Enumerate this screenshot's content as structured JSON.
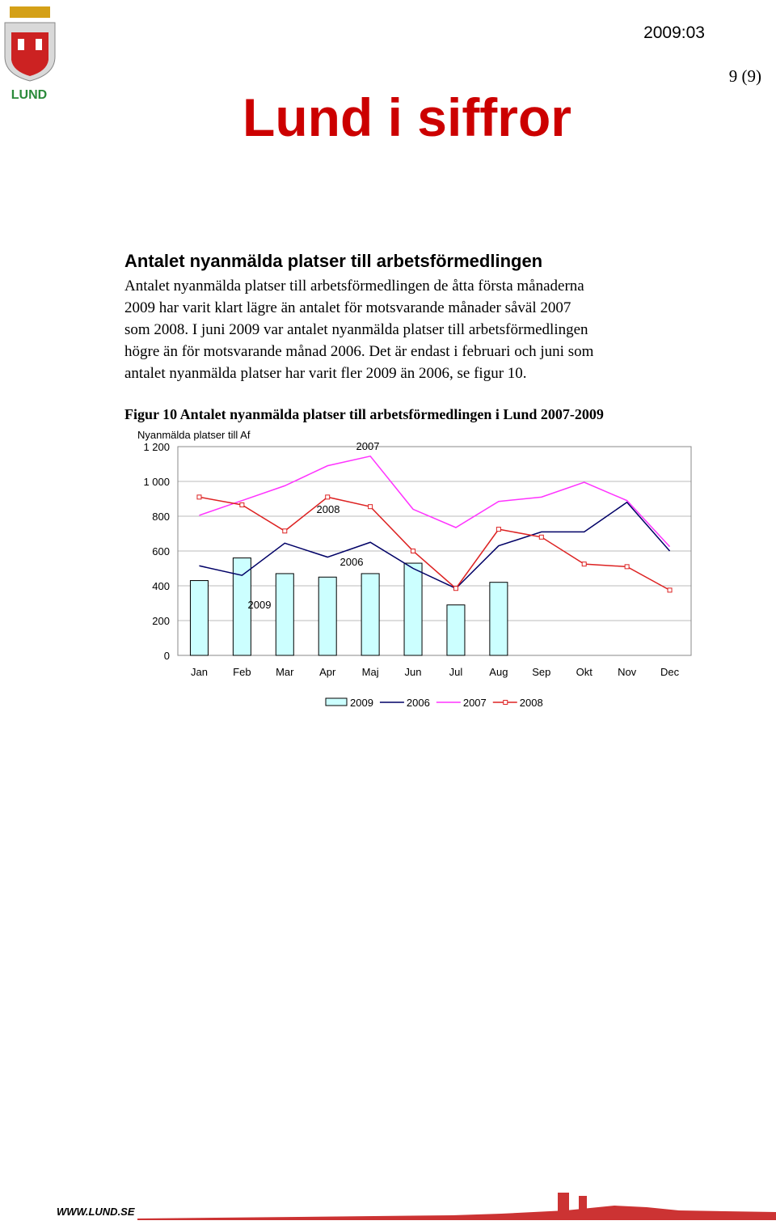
{
  "header": {
    "code": "2009:03",
    "page": "9 (9)",
    "logo_text": "LUND",
    "title": "Lund i siffror"
  },
  "section": {
    "heading": "Antalet nyanmälda platser till arbetsförmedlingen",
    "lines": [
      "Antalet nyanmälda platser till arbetsförmedlingen de åtta första månaderna",
      "2009 har varit klart lägre än antalet för motsvarande månader såväl 2007",
      "som 2008. I juni 2009 var antalet nyanmälda platser till arbetsförmedlingen",
      "högre än för motsvarande månad 2006. Det är endast i februari och juni som",
      "antalet nyanmälda platser har varit fler 2009 än 2006, se figur 10."
    ]
  },
  "figure": {
    "caption": "Figur 10 Antalet nyanmälda platser till arbetsförmedlingen i Lund 2007-2009"
  },
  "chart_data": {
    "type": "combo",
    "y_label": "Nyanmälda platser till Af",
    "categories": [
      "Jan",
      "Feb",
      "Mar",
      "Apr",
      "Maj",
      "Jun",
      "Jul",
      "Aug",
      "Sep",
      "Okt",
      "Nov",
      "Dec"
    ],
    "ylim": [
      0,
      1200
    ],
    "yticks": [
      0,
      200,
      400,
      600,
      800,
      {
        "value": 1000,
        "label": "1 000"
      },
      {
        "value": 1200,
        "label": "1 200"
      }
    ],
    "grid": true,
    "legend": "bottom",
    "series": [
      {
        "name": "2009",
        "type": "bar",
        "color": "#ccffff",
        "values": [
          430,
          560,
          470,
          450,
          470,
          530,
          290,
          420,
          null,
          null,
          null,
          null
        ]
      },
      {
        "name": "2006",
        "type": "line",
        "color": "#000066",
        "values": [
          515,
          460,
          645,
          565,
          650,
          500,
          385,
          630,
          710,
          710,
          880,
          600
        ]
      },
      {
        "name": "2007",
        "type": "line",
        "color": "#ff33ff",
        "values": [
          805,
          890,
          975,
          1090,
          1145,
          840,
          735,
          885,
          910,
          995,
          890,
          625
        ]
      },
      {
        "name": "2008",
        "type": "line",
        "color": "#dd2222",
        "marker": "square",
        "values": [
          910,
          865,
          715,
          910,
          855,
          600,
          385,
          725,
          680,
          525,
          510,
          375
        ]
      }
    ],
    "annotations": [
      "2007",
      "2008",
      "2006",
      "2009"
    ]
  },
  "footer": {
    "url": "WWW.LUND.SE"
  }
}
